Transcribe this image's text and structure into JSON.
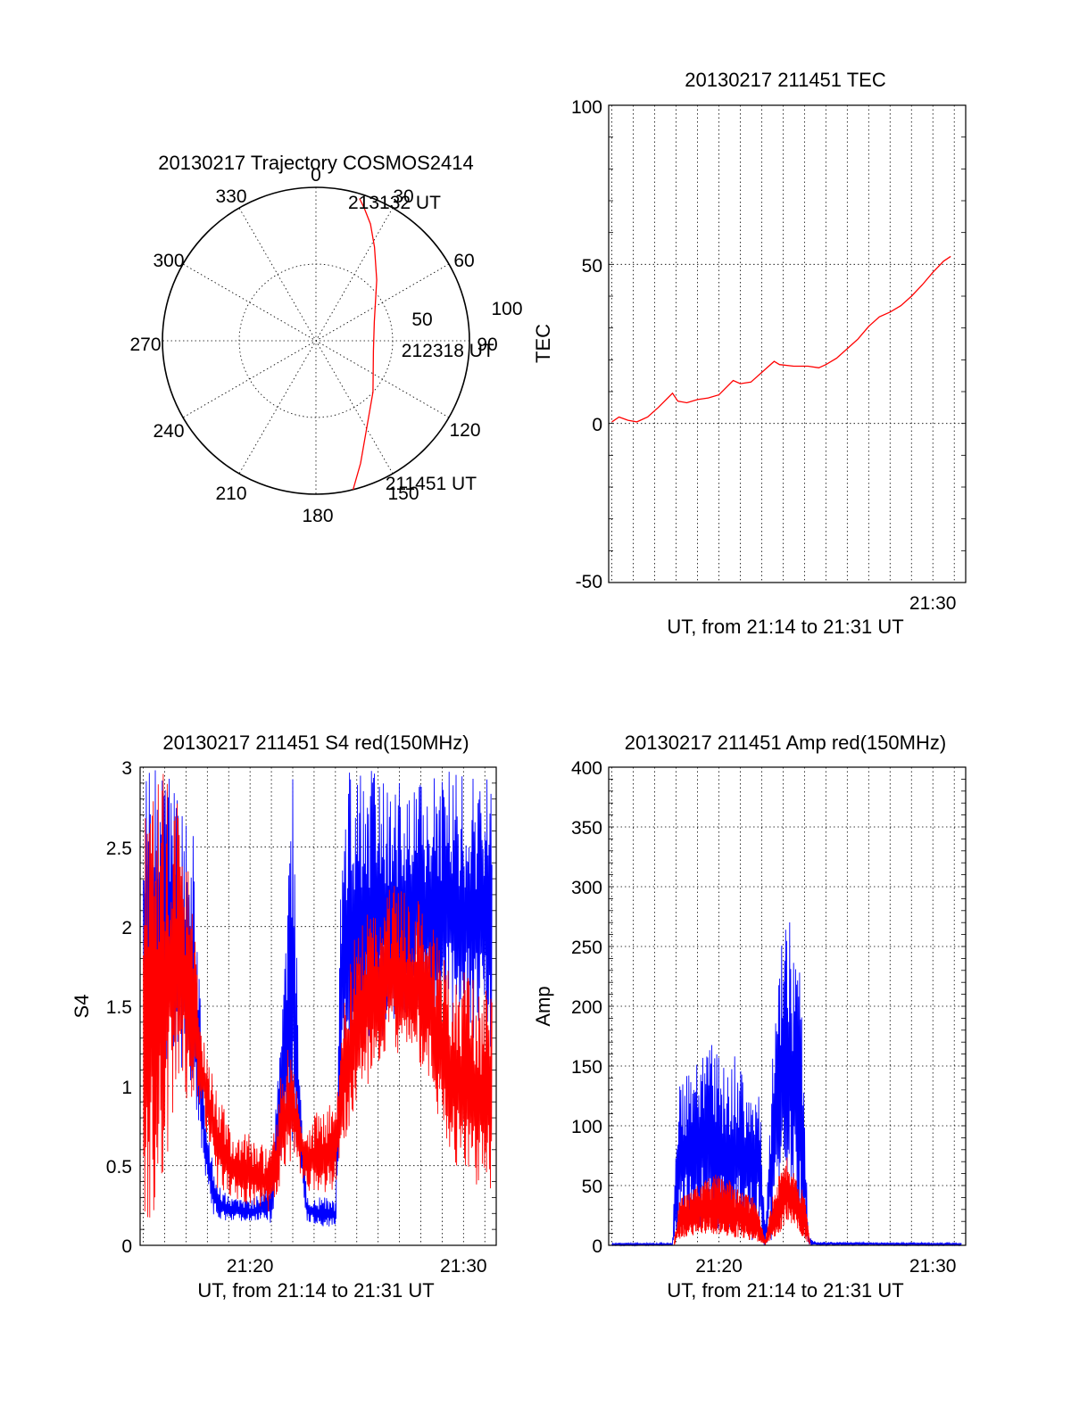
{
  "chart_data": [
    {
      "type": "polar",
      "title": "20130217 Trajectory COSMOS2414",
      "angle_labels": [
        "0",
        "30",
        "60",
        "90",
        "120",
        "150",
        "180",
        "210",
        "240",
        "270",
        "300",
        "330"
      ],
      "radius_labels": [
        "50",
        "100"
      ],
      "rlim": [
        0,
        100
      ],
      "grid": true,
      "series": [
        {
          "color": "#ff0000",
          "points": [
            {
              "az": 166,
              "r": 100
            },
            {
              "az": 160,
              "r": 85
            },
            {
              "az": 150,
              "r": 66
            },
            {
              "az": 132,
              "r": 50
            },
            {
              "az": 100,
              "r": 38
            },
            {
              "az": 72,
              "r": 40
            },
            {
              "az": 45,
              "r": 56
            },
            {
              "az": 32,
              "r": 72
            },
            {
              "az": 25,
              "r": 84
            },
            {
              "az": 20,
              "r": 92
            },
            {
              "az": 17,
              "r": 97
            }
          ]
        }
      ],
      "annotations": [
        {
          "text": "213132 UT",
          "az": 13,
          "r": 93
        },
        {
          "text": "212318 UT",
          "az": 96,
          "r": 56
        },
        {
          "text": "211451 UT",
          "az": 154,
          "r": 103
        }
      ]
    },
    {
      "type": "line",
      "title": "20130217 211451 TEC",
      "xlabel": "UT, from 21:14 to 21:31 UT",
      "ylabel": "TEC",
      "xlim": [
        "21:14:51",
        "21:31:32"
      ],
      "ylim": [
        -50,
        100
      ],
      "yticks": [
        "-50",
        "0",
        "50",
        "100"
      ],
      "xticks": [
        {
          "t": "21:30:00",
          "label": "21:30"
        }
      ],
      "grid": true,
      "series": [
        {
          "color": "#ff0000",
          "points": [
            [
              "21:15:00",
              0.5
            ],
            [
              "21:15:20",
              2.0
            ],
            [
              "21:15:45",
              1.0
            ],
            [
              "21:16:10",
              0.5
            ],
            [
              "21:16:40",
              2.0
            ],
            [
              "21:17:10",
              5.0
            ],
            [
              "21:17:50",
              9.5
            ],
            [
              "21:18:05",
              7.0
            ],
            [
              "21:18:30",
              6.5
            ],
            [
              "21:19:00",
              7.5
            ],
            [
              "21:19:30",
              8.0
            ],
            [
              "21:20:00",
              9.0
            ],
            [
              "21:20:40",
              13.5
            ],
            [
              "21:21:00",
              12.5
            ],
            [
              "21:21:30",
              13.0
            ],
            [
              "21:22:10",
              17.0
            ],
            [
              "21:22:35",
              19.5
            ],
            [
              "21:22:50",
              18.5
            ],
            [
              "21:23:30",
              18.0
            ],
            [
              "21:24:10",
              18.0
            ],
            [
              "21:24:40",
              17.5
            ],
            [
              "21:25:00",
              18.5
            ],
            [
              "21:25:30",
              20.5
            ],
            [
              "21:26:00",
              23.5
            ],
            [
              "21:26:30",
              26.5
            ],
            [
              "21:27:00",
              30.5
            ],
            [
              "21:27:30",
              33.5
            ],
            [
              "21:28:00",
              35.0
            ],
            [
              "21:28:30",
              37.0
            ],
            [
              "21:29:00",
              40.0
            ],
            [
              "21:29:30",
              43.5
            ],
            [
              "21:30:00",
              47.5
            ],
            [
              "21:30:30",
              51.0
            ],
            [
              "21:30:50",
              52.5
            ]
          ]
        }
      ]
    },
    {
      "type": "line",
      "title": "20130217 211451 S4 red(150MHz)",
      "xlabel": "UT, from 21:14 to 21:31 UT",
      "ylabel": "S4",
      "xlim": [
        "21:14:51",
        "21:31:32"
      ],
      "ylim": [
        0,
        3
      ],
      "yticks": [
        "0",
        "0.5",
        "1",
        "1.5",
        "2",
        "2.5",
        "3"
      ],
      "xticks": [
        {
          "t": "21:20:00",
          "label": "21:20"
        },
        {
          "t": "21:30:00",
          "label": "21:30"
        }
      ],
      "grid": true,
      "series": [
        {
          "color": "#0000ff",
          "envelope": [
            [
              "21:15:00",
              1.2,
              3.0
            ],
            [
              "21:15:40",
              1.2,
              3.0
            ],
            [
              "21:16:30",
              1.1,
              3.0
            ],
            [
              "21:17:20",
              1.0,
              2.6
            ],
            [
              "21:17:50",
              0.45,
              1.0
            ],
            [
              "21:18:20",
              0.17,
              0.45
            ],
            [
              "21:19:00",
              0.15,
              0.3
            ],
            [
              "21:20:00",
              0.15,
              0.28
            ],
            [
              "21:21:00",
              0.14,
              0.38
            ],
            [
              "21:21:30",
              0.5,
              1.8
            ],
            [
              "21:22:00",
              0.6,
              3.0
            ],
            [
              "21:22:20",
              0.45,
              1.0
            ],
            [
              "21:22:40",
              0.15,
              0.3
            ],
            [
              "21:23:20",
              0.12,
              0.3
            ],
            [
              "21:24:00",
              0.1,
              0.3
            ],
            [
              "21:24:20",
              0.7,
              3.0
            ],
            [
              "21:25:00",
              1.2,
              3.0
            ],
            [
              "21:26:30",
              1.3,
              3.0
            ],
            [
              "21:28:00",
              1.4,
              3.0
            ],
            [
              "21:29:30",
              1.3,
              3.0
            ],
            [
              "21:31:20",
              1.2,
              3.0
            ]
          ]
        },
        {
          "color": "#ff0000",
          "envelope": [
            [
              "21:15:00",
              0.0,
              3.0
            ],
            [
              "21:15:40",
              0.2,
              3.0
            ],
            [
              "21:16:30",
              0.8,
              3.0
            ],
            [
              "21:17:20",
              0.9,
              2.2
            ],
            [
              "21:17:50",
              0.8,
              1.3
            ],
            [
              "21:18:20",
              0.35,
              1.1
            ],
            [
              "21:19:00",
              0.3,
              0.75
            ],
            [
              "21:20:00",
              0.25,
              0.7
            ],
            [
              "21:21:00",
              0.2,
              0.6
            ],
            [
              "21:21:30",
              0.4,
              1.2
            ],
            [
              "21:22:00",
              0.55,
              1.25
            ],
            [
              "21:22:20",
              0.45,
              0.9
            ],
            [
              "21:22:40",
              0.35,
              0.8
            ],
            [
              "21:23:20",
              0.3,
              0.85
            ],
            [
              "21:24:00",
              0.35,
              0.9
            ],
            [
              "21:24:20",
              0.6,
              1.5
            ],
            [
              "21:25:00",
              0.9,
              2.0
            ],
            [
              "21:26:30",
              1.2,
              2.3
            ],
            [
              "21:28:00",
              1.1,
              2.2
            ],
            [
              "21:29:30",
              0.5,
              1.8
            ],
            [
              "21:31:20",
              0.3,
              1.6
            ]
          ]
        }
      ]
    },
    {
      "type": "line",
      "title": "20130217 211451 Amp red(150MHz)",
      "xlabel": "UT, from 21:14 to 21:31 UT",
      "ylabel": "Amp",
      "xlim": [
        "21:14:51",
        "21:31:32"
      ],
      "ylim": [
        0,
        400
      ],
      "yticks": [
        "0",
        "50",
        "100",
        "150",
        "200",
        "250",
        "300",
        "350",
        "400"
      ],
      "xticks": [
        {
          "t": "21:20:00",
          "label": "21:20"
        },
        {
          "t": "21:30:00",
          "label": "21:30"
        }
      ],
      "grid": true,
      "series": [
        {
          "color": "#0000ff",
          "envelope": [
            [
              "21:15:00",
              0,
              2
            ],
            [
              "21:17:50",
              0,
              2
            ],
            [
              "21:18:05",
              10,
              140
            ],
            [
              "21:18:30",
              15,
              150
            ],
            [
              "21:19:00",
              10,
              160
            ],
            [
              "21:19:40",
              15,
              180
            ],
            [
              "21:20:20",
              10,
              150
            ],
            [
              "21:20:50",
              10,
              160
            ],
            [
              "21:21:20",
              5,
              140
            ],
            [
              "21:21:50",
              0,
              165
            ],
            [
              "21:22:10",
              0,
              10
            ],
            [
              "21:22:30",
              5,
              160
            ],
            [
              "21:22:50",
              20,
              230
            ],
            [
              "21:23:10",
              40,
              300
            ],
            [
              "21:23:30",
              30,
              250
            ],
            [
              "21:23:50",
              20,
              240
            ],
            [
              "21:24:10",
              0,
              10
            ],
            [
              "21:24:30",
              0,
              3
            ],
            [
              "21:31:20",
              0,
              2
            ]
          ]
        },
        {
          "color": "#ff0000",
          "envelope": [
            [
              "21:17:55",
              0,
              5
            ],
            [
              "21:18:10",
              5,
              40
            ],
            [
              "21:18:40",
              8,
              45
            ],
            [
              "21:19:20",
              10,
              55
            ],
            [
              "21:19:50",
              8,
              60
            ],
            [
              "21:20:30",
              8,
              55
            ],
            [
              "21:21:00",
              5,
              45
            ],
            [
              "21:21:40",
              3,
              40
            ],
            [
              "21:22:10",
              0,
              5
            ],
            [
              "21:22:30",
              5,
              40
            ],
            [
              "21:22:50",
              10,
              60
            ],
            [
              "21:23:10",
              20,
              75
            ],
            [
              "21:23:30",
              15,
              60
            ],
            [
              "21:24:00",
              5,
              45
            ],
            [
              "21:24:15",
              0,
              5
            ]
          ]
        }
      ]
    }
  ]
}
